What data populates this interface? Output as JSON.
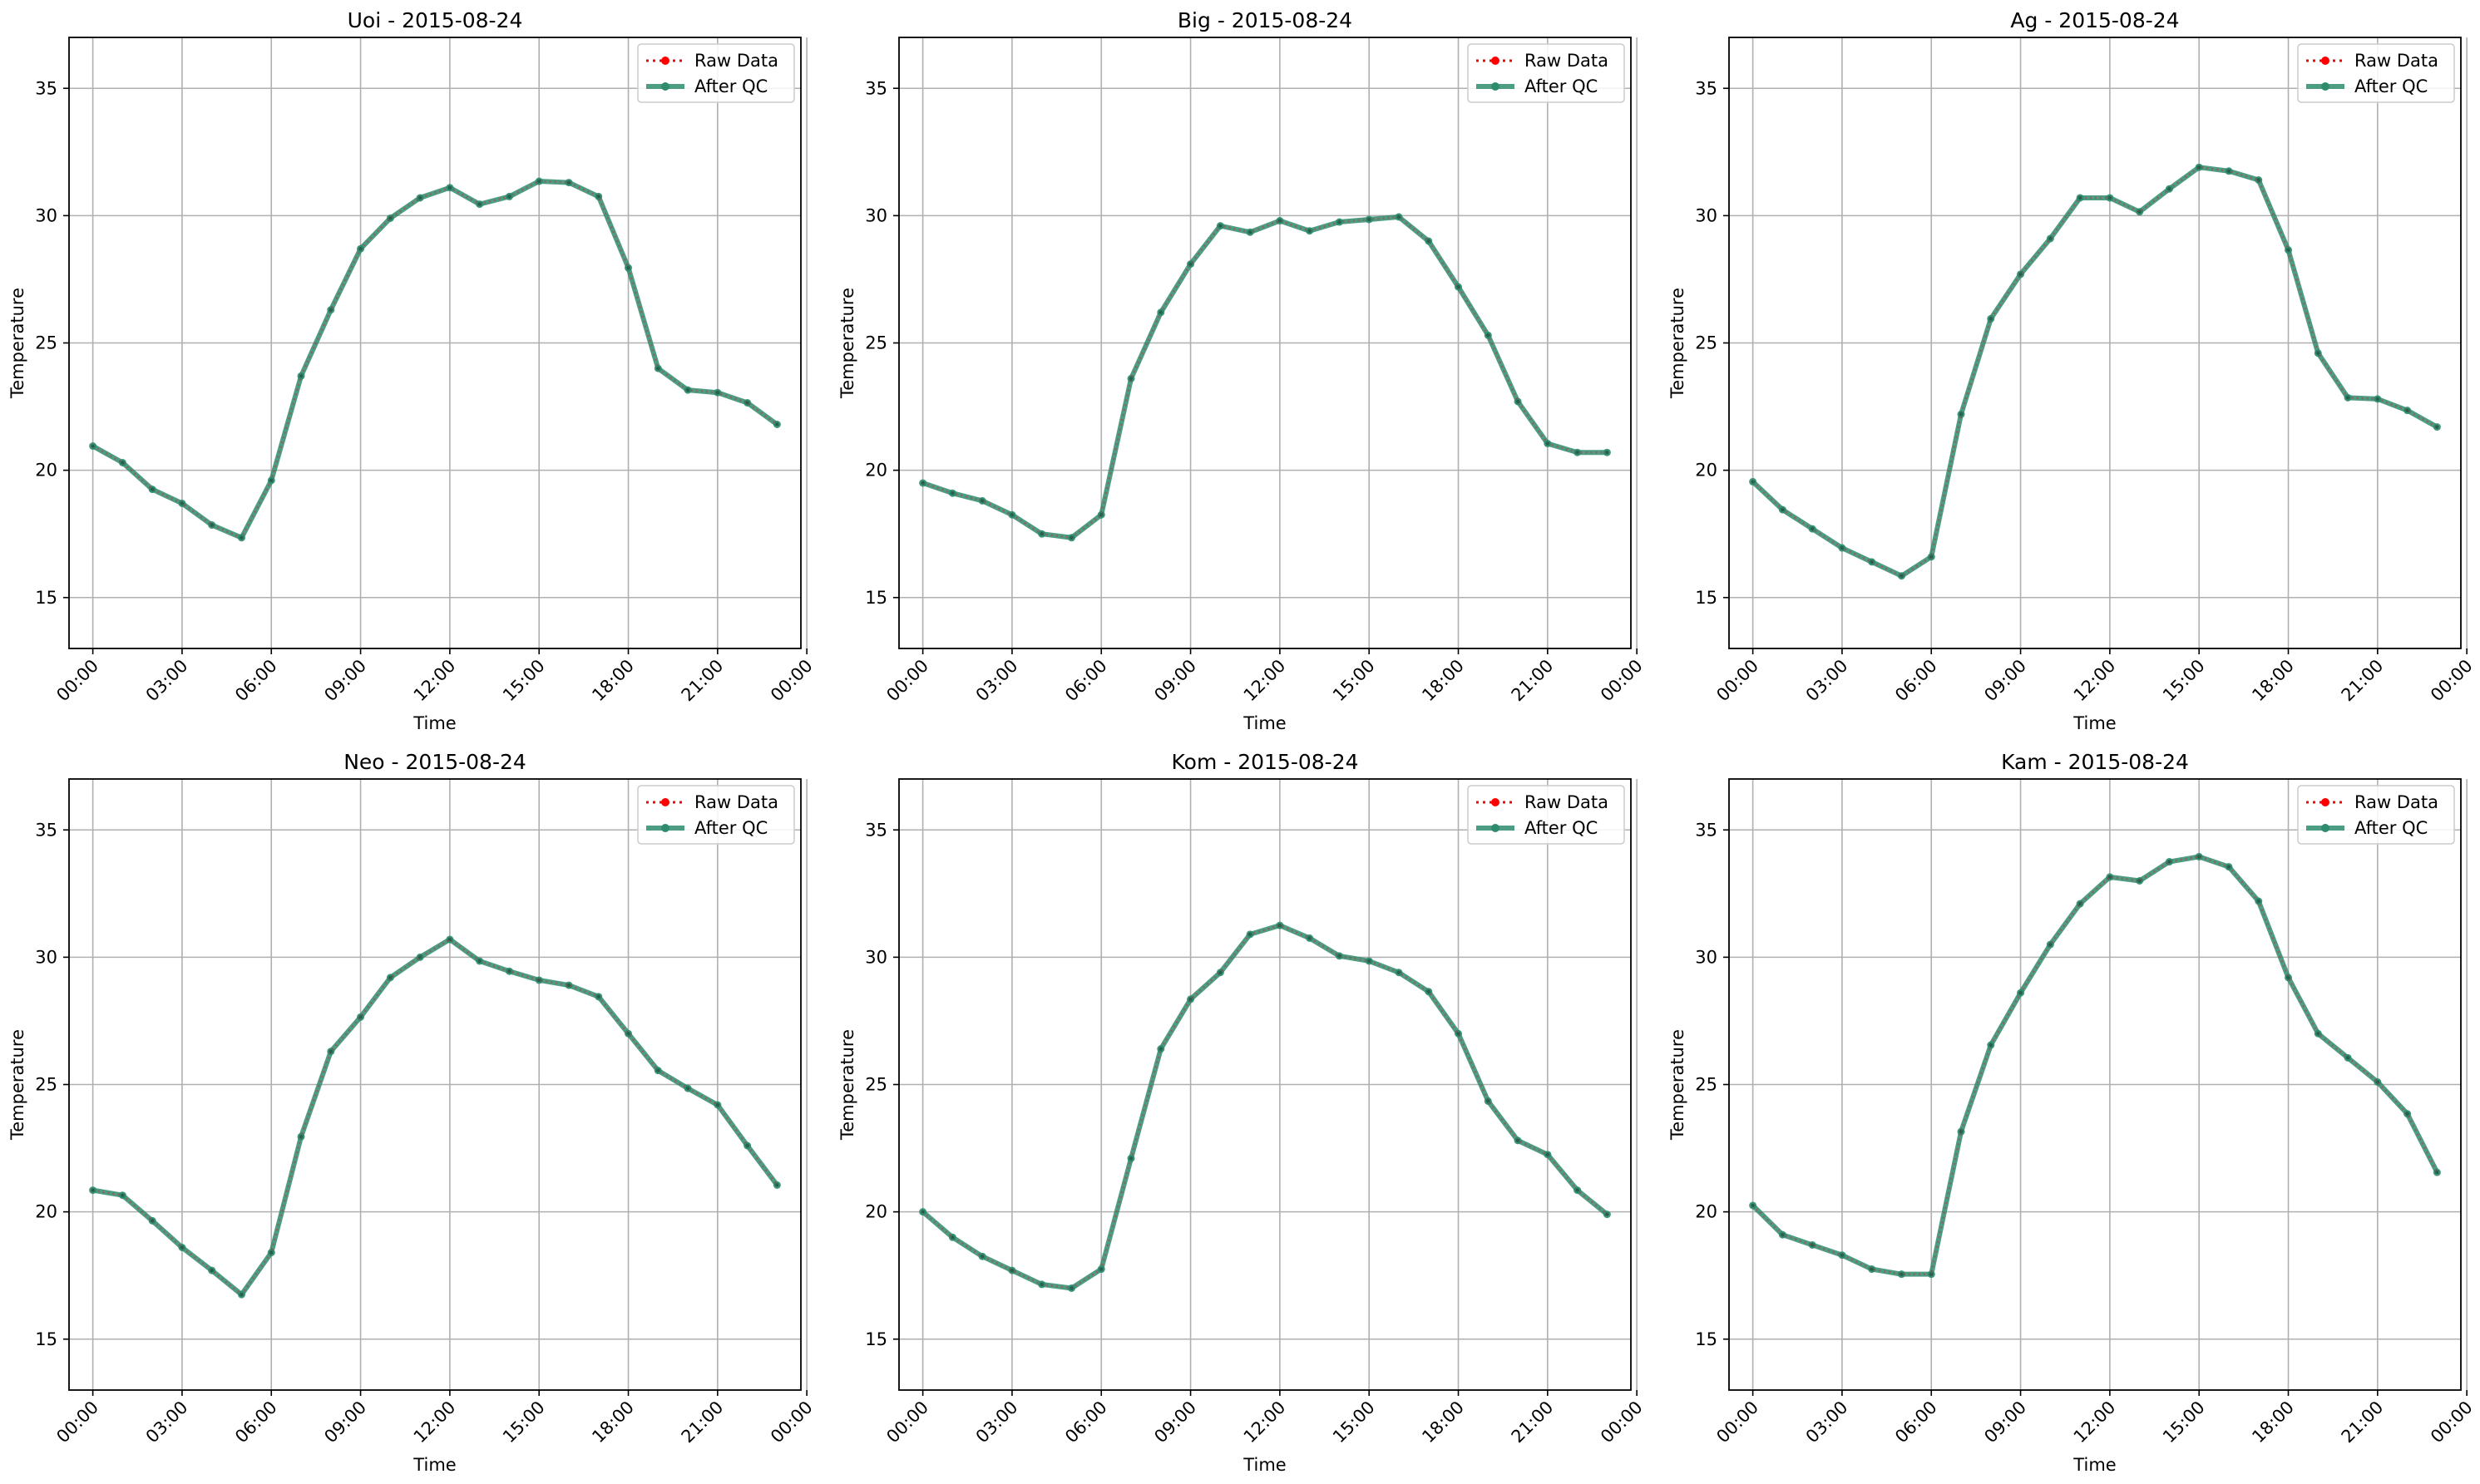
{
  "figure": {
    "background": "#ffffff",
    "raw_color": "#ff0000",
    "qc_color": "#2e8b6e",
    "grid_color": "#b0b0b0"
  },
  "chart_data": [
    {
      "type": "line",
      "title": "Uoi - 2015-08-24",
      "xlabel": "Time",
      "ylabel": "Temperature",
      "ylim": [
        13,
        37
      ],
      "yticks": [
        15,
        20,
        25,
        30,
        35
      ],
      "xlim": [
        -0.8,
        23.8
      ],
      "xticks": [
        0,
        3,
        6,
        9,
        12,
        15,
        18,
        21,
        24
      ],
      "xtick_labels": [
        "00:00",
        "03:00",
        "06:00",
        "09:00",
        "12:00",
        "15:00",
        "18:00",
        "21:00",
        "00:00"
      ],
      "grid": true,
      "legend_position": "top-right",
      "x": [
        0,
        1,
        2,
        3,
        4,
        5,
        6,
        7,
        8,
        9,
        10,
        11,
        12,
        13,
        14,
        15,
        16,
        17,
        18,
        19,
        20,
        21,
        22,
        23
      ],
      "series": [
        {
          "name": "Raw Data",
          "values": [
            20.95,
            20.3,
            19.25,
            18.7,
            17.85,
            17.35,
            19.6,
            23.7,
            26.3,
            28.7,
            29.9,
            30.7,
            31.1,
            30.45,
            30.75,
            31.35,
            31.3,
            30.75,
            27.95,
            24.0,
            23.15,
            23.05,
            22.65,
            21.8
          ]
        },
        {
          "name": "After QC",
          "values": [
            20.95,
            20.3,
            19.25,
            18.7,
            17.85,
            17.35,
            19.6,
            23.7,
            26.3,
            28.7,
            29.9,
            30.7,
            31.1,
            30.45,
            30.75,
            31.35,
            31.3,
            30.75,
            27.95,
            24.0,
            23.15,
            23.05,
            22.65,
            21.8
          ]
        }
      ]
    },
    {
      "type": "line",
      "title": "Big - 2015-08-24",
      "xlabel": "Time",
      "ylabel": "Temperature",
      "ylim": [
        13,
        37
      ],
      "yticks": [
        15,
        20,
        25,
        30,
        35
      ],
      "xlim": [
        -0.8,
        23.8
      ],
      "xticks": [
        0,
        3,
        6,
        9,
        12,
        15,
        18,
        21,
        24
      ],
      "xtick_labels": [
        "00:00",
        "03:00",
        "06:00",
        "09:00",
        "12:00",
        "15:00",
        "18:00",
        "21:00",
        "00:00"
      ],
      "grid": true,
      "legend_position": "top-right",
      "x": [
        0,
        1,
        2,
        3,
        4,
        5,
        6,
        7,
        8,
        9,
        10,
        11,
        12,
        13,
        14,
        15,
        16,
        17,
        18,
        19,
        20,
        21,
        22,
        23
      ],
      "series": [
        {
          "name": "Raw Data",
          "values": [
            19.5,
            19.1,
            18.8,
            18.25,
            17.5,
            17.35,
            18.25,
            23.6,
            26.2,
            28.1,
            29.6,
            29.35,
            29.8,
            29.4,
            29.75,
            29.85,
            29.95,
            29.0,
            27.2,
            25.3,
            22.7,
            21.05,
            20.7,
            20.7
          ]
        },
        {
          "name": "After QC",
          "values": [
            19.5,
            19.1,
            18.8,
            18.25,
            17.5,
            17.35,
            18.25,
            23.6,
            26.2,
            28.1,
            29.6,
            29.35,
            29.8,
            29.4,
            29.75,
            29.85,
            29.95,
            29.0,
            27.2,
            25.3,
            22.7,
            21.05,
            20.7,
            20.7
          ]
        }
      ]
    },
    {
      "type": "line",
      "title": "Ag - 2015-08-24",
      "xlabel": "Time",
      "ylabel": "Temperature",
      "ylim": [
        13,
        37
      ],
      "yticks": [
        15,
        20,
        25,
        30,
        35
      ],
      "xlim": [
        -0.8,
        23.8
      ],
      "xticks": [
        0,
        3,
        6,
        9,
        12,
        15,
        18,
        21,
        24
      ],
      "xtick_labels": [
        "00:00",
        "03:00",
        "06:00",
        "09:00",
        "12:00",
        "15:00",
        "18:00",
        "21:00",
        "00:00"
      ],
      "grid": true,
      "legend_position": "top-right",
      "x": [
        0,
        1,
        2,
        3,
        4,
        5,
        6,
        7,
        8,
        9,
        10,
        11,
        12,
        13,
        14,
        15,
        16,
        17,
        18,
        19,
        20,
        21,
        22,
        23
      ],
      "series": [
        {
          "name": "Raw Data",
          "values": [
            19.55,
            18.45,
            17.7,
            16.95,
            16.4,
            15.85,
            16.6,
            22.2,
            25.95,
            27.7,
            29.1,
            30.7,
            30.7,
            30.15,
            31.05,
            31.9,
            31.75,
            31.4,
            28.65,
            24.6,
            22.85,
            22.8,
            22.35,
            21.7
          ]
        },
        {
          "name": "After QC",
          "values": [
            19.55,
            18.45,
            17.7,
            16.95,
            16.4,
            15.85,
            16.6,
            22.2,
            25.95,
            27.7,
            29.1,
            30.7,
            30.7,
            30.15,
            31.05,
            31.9,
            31.75,
            31.4,
            28.65,
            24.6,
            22.85,
            22.8,
            22.35,
            21.7
          ]
        }
      ]
    },
    {
      "type": "line",
      "title": "Neo - 2015-08-24",
      "xlabel": "Time",
      "ylabel": "Temperature",
      "ylim": [
        13,
        37
      ],
      "yticks": [
        15,
        20,
        25,
        30,
        35
      ],
      "xlim": [
        -0.8,
        23.8
      ],
      "xticks": [
        0,
        3,
        6,
        9,
        12,
        15,
        18,
        21,
        24
      ],
      "xtick_labels": [
        "00:00",
        "03:00",
        "06:00",
        "09:00",
        "12:00",
        "15:00",
        "18:00",
        "21:00",
        "00:00"
      ],
      "grid": true,
      "legend_position": "top-right",
      "x": [
        0,
        1,
        2,
        3,
        4,
        5,
        6,
        7,
        8,
        9,
        10,
        11,
        12,
        13,
        14,
        15,
        16,
        17,
        18,
        19,
        20,
        21,
        22,
        23
      ],
      "series": [
        {
          "name": "Raw Data",
          "values": [
            20.85,
            20.65,
            19.65,
            18.6,
            17.7,
            16.75,
            18.4,
            22.95,
            26.3,
            27.65,
            29.2,
            30.0,
            30.7,
            29.85,
            29.45,
            29.1,
            28.9,
            28.45,
            27.0,
            25.55,
            24.85,
            24.2,
            22.6,
            21.05
          ]
        },
        {
          "name": "After QC",
          "values": [
            20.85,
            20.65,
            19.65,
            18.6,
            17.7,
            16.75,
            18.4,
            22.95,
            26.3,
            27.65,
            29.2,
            30.0,
            30.7,
            29.85,
            29.45,
            29.1,
            28.9,
            28.45,
            27.0,
            25.55,
            24.85,
            24.2,
            22.6,
            21.05
          ]
        }
      ]
    },
    {
      "type": "line",
      "title": "Kom - 2015-08-24",
      "xlabel": "Time",
      "ylabel": "Temperature",
      "ylim": [
        13,
        37
      ],
      "yticks": [
        15,
        20,
        25,
        30,
        35
      ],
      "xlim": [
        -0.8,
        23.8
      ],
      "xticks": [
        0,
        3,
        6,
        9,
        12,
        15,
        18,
        21,
        24
      ],
      "xtick_labels": [
        "00:00",
        "03:00",
        "06:00",
        "09:00",
        "12:00",
        "15:00",
        "18:00",
        "21:00",
        "00:00"
      ],
      "grid": true,
      "legend_position": "top-right",
      "x": [
        0,
        1,
        2,
        3,
        4,
        5,
        6,
        7,
        8,
        9,
        10,
        11,
        12,
        13,
        14,
        15,
        16,
        17,
        18,
        19,
        20,
        21,
        22,
        23
      ],
      "series": [
        {
          "name": "Raw Data",
          "values": [
            20.0,
            19.0,
            18.25,
            17.7,
            17.15,
            17.0,
            17.75,
            22.1,
            26.4,
            28.35,
            29.4,
            30.9,
            31.25,
            30.75,
            30.05,
            29.85,
            29.4,
            28.65,
            27.0,
            24.35,
            22.8,
            22.25,
            20.85,
            19.9
          ]
        },
        {
          "name": "After QC",
          "values": [
            20.0,
            19.0,
            18.25,
            17.7,
            17.15,
            17.0,
            17.75,
            22.1,
            26.4,
            28.35,
            29.4,
            30.9,
            31.25,
            30.75,
            30.05,
            29.85,
            29.4,
            28.65,
            27.0,
            24.35,
            22.8,
            22.25,
            20.85,
            19.9
          ]
        }
      ]
    },
    {
      "type": "line",
      "title": "Kam - 2015-08-24",
      "xlabel": "Time",
      "ylabel": "Temperature",
      "ylim": [
        13,
        37
      ],
      "yticks": [
        15,
        20,
        25,
        30,
        35
      ],
      "xlim": [
        -0.8,
        23.8
      ],
      "xticks": [
        0,
        3,
        6,
        9,
        12,
        15,
        18,
        21,
        24
      ],
      "xtick_labels": [
        "00:00",
        "03:00",
        "06:00",
        "09:00",
        "12:00",
        "15:00",
        "18:00",
        "21:00",
        "00:00"
      ],
      "grid": true,
      "legend_position": "top-right",
      "x": [
        0,
        1,
        2,
        3,
        4,
        5,
        6,
        7,
        8,
        9,
        10,
        11,
        12,
        13,
        14,
        15,
        16,
        17,
        18,
        19,
        20,
        21,
        22,
        23
      ],
      "series": [
        {
          "name": "Raw Data",
          "values": [
            20.25,
            19.1,
            18.7,
            18.3,
            17.75,
            17.55,
            17.55,
            23.15,
            26.55,
            28.6,
            30.5,
            32.1,
            33.15,
            33.0,
            33.75,
            33.95,
            33.55,
            32.2,
            29.2,
            27.0,
            26.05,
            25.1,
            23.85,
            21.55
          ]
        },
        {
          "name": "After QC",
          "values": [
            20.25,
            19.1,
            18.7,
            18.3,
            17.75,
            17.55,
            17.55,
            23.15,
            26.55,
            28.6,
            30.5,
            32.1,
            33.15,
            33.0,
            33.75,
            33.95,
            33.55,
            32.2,
            29.2,
            27.0,
            26.05,
            25.1,
            23.85,
            21.55
          ]
        }
      ]
    }
  ]
}
